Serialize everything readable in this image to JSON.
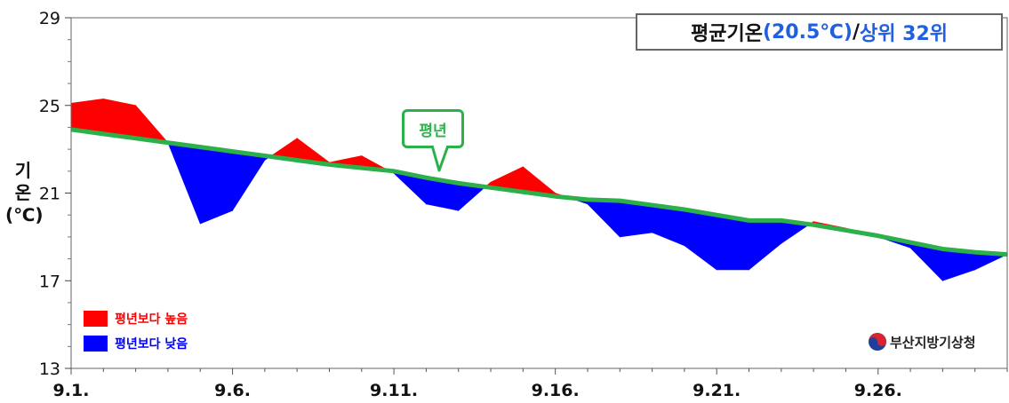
{
  "title": {
    "part1": "평균기온",
    "part2": "(20.5℃)",
    "part3": "/ ",
    "part4": "상위 32위"
  },
  "ylabel": {
    "line1": "기",
    "line2": "온",
    "line3": "(℃)"
  },
  "callout": "평년",
  "legend": [
    {
      "label": "평년보다 높음",
      "color": "#ff0000"
    },
    {
      "label": "평년보다 낮음",
      "color": "#0000ff"
    }
  ],
  "agency": "부산지방기상청",
  "chart_data": {
    "type": "area",
    "ylim": [
      13,
      29
    ],
    "yticks": [
      13,
      17,
      21,
      25,
      29
    ],
    "xlim": [
      1,
      30
    ],
    "xticks": [
      {
        "day": 1,
        "label": "9.1."
      },
      {
        "day": 6,
        "label": "9.6."
      },
      {
        "day": 11,
        "label": "9.11."
      },
      {
        "day": 16,
        "label": "9.16."
      },
      {
        "day": 21,
        "label": "9.21."
      },
      {
        "day": 26,
        "label": "9.26."
      }
    ],
    "series": [
      {
        "name": "평년",
        "days": [
          1,
          2,
          3,
          4,
          5,
          6,
          7,
          8,
          9,
          10,
          11,
          12,
          13,
          14,
          15,
          16,
          17,
          18,
          19,
          20,
          21,
          22,
          23,
          24,
          25,
          26,
          27,
          28,
          29,
          30
        ],
        "values": [
          23.9,
          23.7,
          23.5,
          23.3,
          23.1,
          22.9,
          22.7,
          22.5,
          22.3,
          22.15,
          22.0,
          21.7,
          21.45,
          21.25,
          21.05,
          20.85,
          20.7,
          20.65,
          20.45,
          20.25,
          20.0,
          19.75,
          19.75,
          19.55,
          19.3,
          19.05,
          18.75,
          18.45,
          18.3,
          18.2
        ]
      },
      {
        "name": "평균기온",
        "days": [
          1,
          2,
          3,
          4,
          5,
          6,
          7,
          8,
          9,
          10,
          11,
          12,
          13,
          14,
          15,
          16,
          17,
          18,
          19,
          20,
          21,
          22,
          23,
          24,
          25,
          26,
          27,
          28,
          29,
          30
        ],
        "values": [
          25.1,
          25.3,
          25.0,
          23.3,
          19.6,
          20.2,
          22.5,
          23.5,
          22.4,
          22.7,
          21.9,
          20.5,
          20.2,
          21.5,
          22.2,
          21.0,
          20.5,
          19.0,
          19.2,
          18.6,
          17.5,
          17.5,
          18.7,
          19.7,
          19.4,
          19.0,
          18.5,
          17.0,
          17.5,
          18.2
        ]
      }
    ],
    "fill_above_color": "#ff0000",
    "fill_below_color": "#0000ff",
    "normal_line_color": "#2bb04a"
  }
}
